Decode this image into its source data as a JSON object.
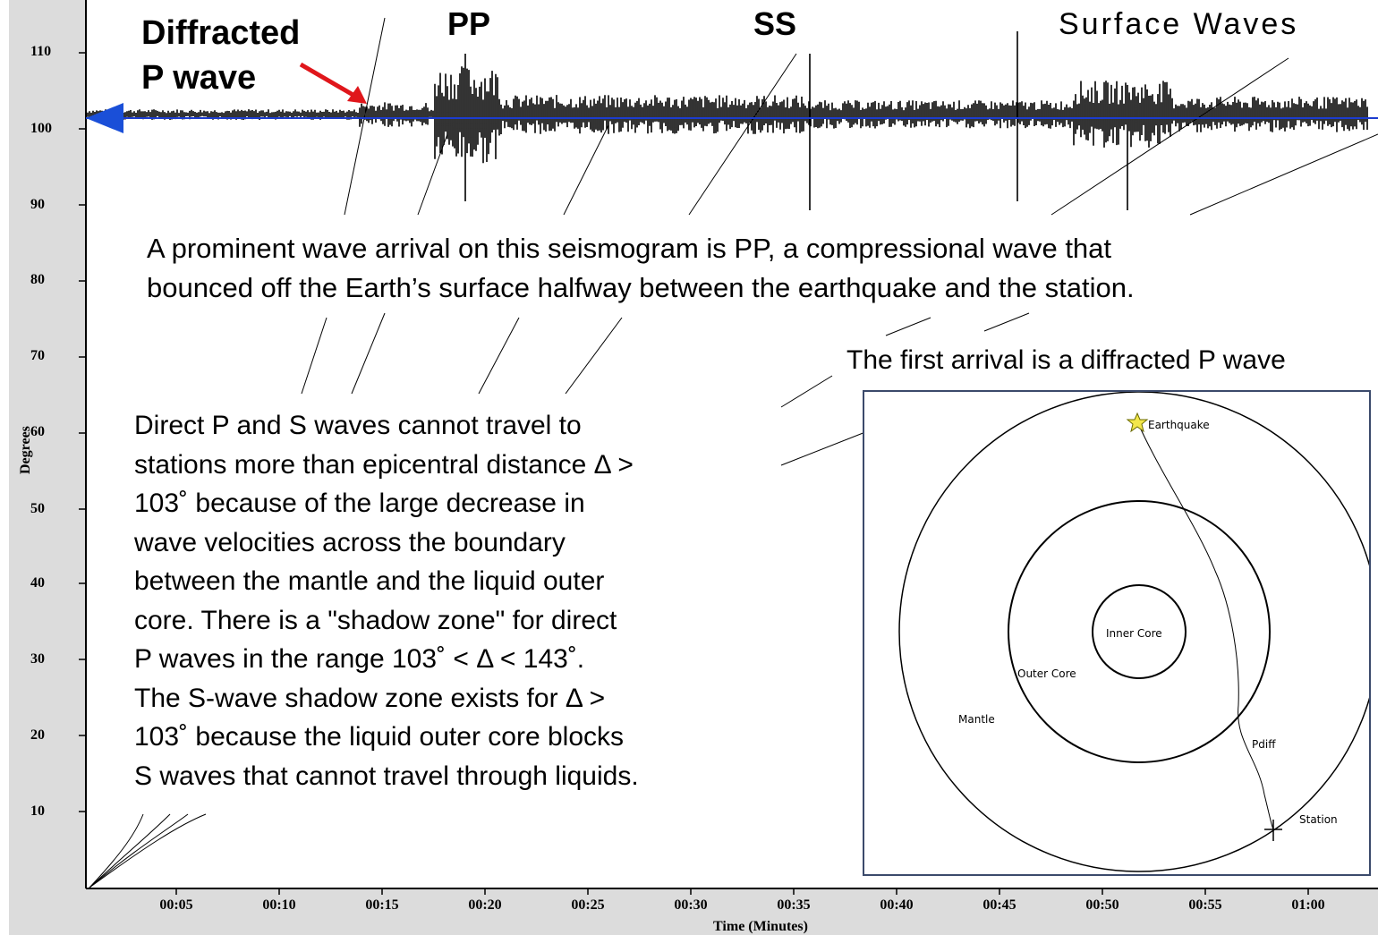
{
  "labels": {
    "diffracted_line1": "Diffracted",
    "diffracted_line2": "P wave",
    "pp": "PP",
    "ss": "SS",
    "surface_waves": "Surface Waves"
  },
  "annotations": {
    "pp_note_line1": "A prominent wave arrival on this seismogram is PP, a compressional wave that",
    "pp_note_line2": "bounced off the Earth’s surface halfway between the earthquake and the station.",
    "first_arrival": "The first arrival is a diffracted P wave",
    "shadow_lines": [
      "Direct P and S waves cannot travel to",
      "stations more than epicentral distance Δ >",
      "103˚ because of the large decrease in",
      "wave velocities across the boundary",
      "between the mantle and the liquid outer",
      "core.  There is a \"shadow zone\" for direct",
      "P waves in the range 103˚ < Δ < 143˚.",
      "The S-wave shadow zone exists for Δ >",
      "103˚ because the liquid outer core blocks",
      "S waves that cannot travel through liquids."
    ]
  },
  "axes": {
    "y_label": "Degrees",
    "x_label": "Time (Minutes)",
    "y_ticks": [
      "110",
      "100",
      "90",
      "80",
      "70",
      "60",
      "50",
      "40",
      "30",
      "20",
      "10"
    ],
    "x_ticks": [
      "00:05",
      "00:10",
      "00:15",
      "00:20",
      "00:25",
      "00:30",
      "00:35",
      "00:40",
      "00:45",
      "00:50",
      "00:55",
      "01:00"
    ]
  },
  "earth_diagram": {
    "earthquake": "Earthquake",
    "inner_core": "Inner Core",
    "outer_core": "Outer Core",
    "mantle": "Mantle",
    "pdiff": "Pdiff",
    "station": "Station"
  },
  "colors": {
    "arrow": "#e0161b",
    "trace_line": "#1c3ccf",
    "marker": "#1a4fd8",
    "box_border": "#3b4a6b"
  }
}
